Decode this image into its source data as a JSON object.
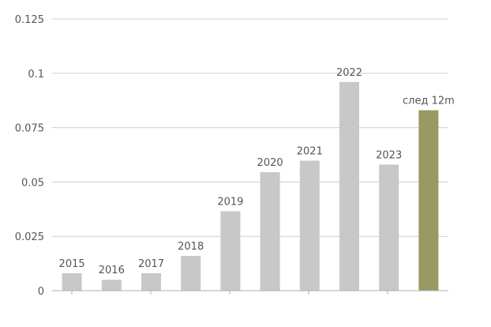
{
  "chart_data": {
    "type": "bar",
    "categories": [
      "2015",
      "2016",
      "2017",
      "2018",
      "2019",
      "2020",
      "2021",
      "2022",
      "2023",
      "след 12m"
    ],
    "values": [
      0.008,
      0.005,
      0.008,
      0.016,
      0.0365,
      0.0545,
      0.0598,
      0.096,
      0.058,
      0.083
    ],
    "ylim": [
      0,
      0.125
    ],
    "yticks": [
      "0",
      "0.025",
      "0.05",
      "0.075",
      "0.1",
      "0.125"
    ],
    "title": "",
    "xlabel": "",
    "ylabel": "",
    "grid": true,
    "colors": {
      "bar": "#c8c8c8",
      "highlight_bar": "#999966",
      "grid": "#cfcfcf",
      "axis": "#b0b0b0",
      "text": "#555555"
    },
    "highlight_index": 9
  }
}
